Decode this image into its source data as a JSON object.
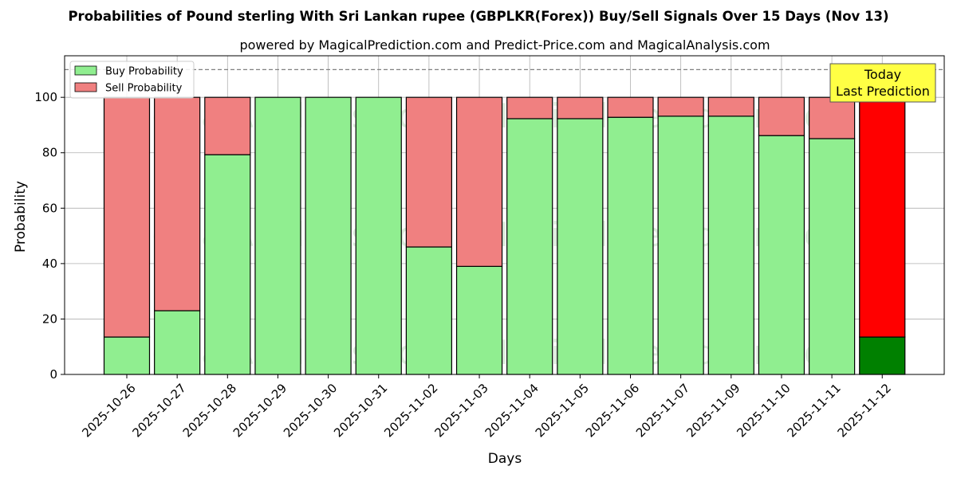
{
  "chart_data": {
    "type": "bar",
    "stacked": true,
    "title": "Probabilities of Pound sterling With Sri Lankan rupee (GBPLKR(Forex)) Buy/Sell Signals Over 15 Days (Nov 13)",
    "subtitle": "powered by MagicalPrediction.com and Predict-Price.com and MagicalAnalysis.com",
    "xlabel": "Days",
    "ylabel": "Probability",
    "ylim": [
      0,
      115
    ],
    "yticks": [
      0,
      20,
      40,
      60,
      80,
      100
    ],
    "grid": true,
    "legend_position": "top-left",
    "reference_line": 110,
    "categories": [
      "2025-10-26",
      "2025-10-27",
      "2025-10-28",
      "2025-10-29",
      "2025-10-30",
      "2025-10-31",
      "2025-11-02",
      "2025-11-03",
      "2025-11-04",
      "2025-11-05",
      "2025-11-06",
      "2025-11-07",
      "2025-11-09",
      "2025-11-10",
      "2025-11-11",
      "2025-11-12"
    ],
    "series": [
      {
        "name": "Buy Probability",
        "color": "#90ee90",
        "today_color": "#008000",
        "values": [
          13.5,
          23,
          79.3,
          100,
          100,
          100,
          46,
          39,
          92.3,
          92.3,
          92.8,
          93.2,
          93.2,
          86.2,
          85.1,
          13.5
        ]
      },
      {
        "name": "Sell Probability",
        "color": "#f08080",
        "today_color": "#ff0000",
        "values": [
          86.5,
          77,
          20.7,
          0,
          0,
          0,
          54,
          61,
          7.7,
          7.7,
          7.2,
          6.8,
          6.8,
          13.8,
          14.9,
          86.5
        ]
      }
    ],
    "annotation": {
      "line1": "Today",
      "line2": "Last Prediction",
      "color": "#ffff44"
    },
    "watermarks": [
      "MagicalAnalysis.com",
      "MagicalPrediction.com"
    ]
  }
}
